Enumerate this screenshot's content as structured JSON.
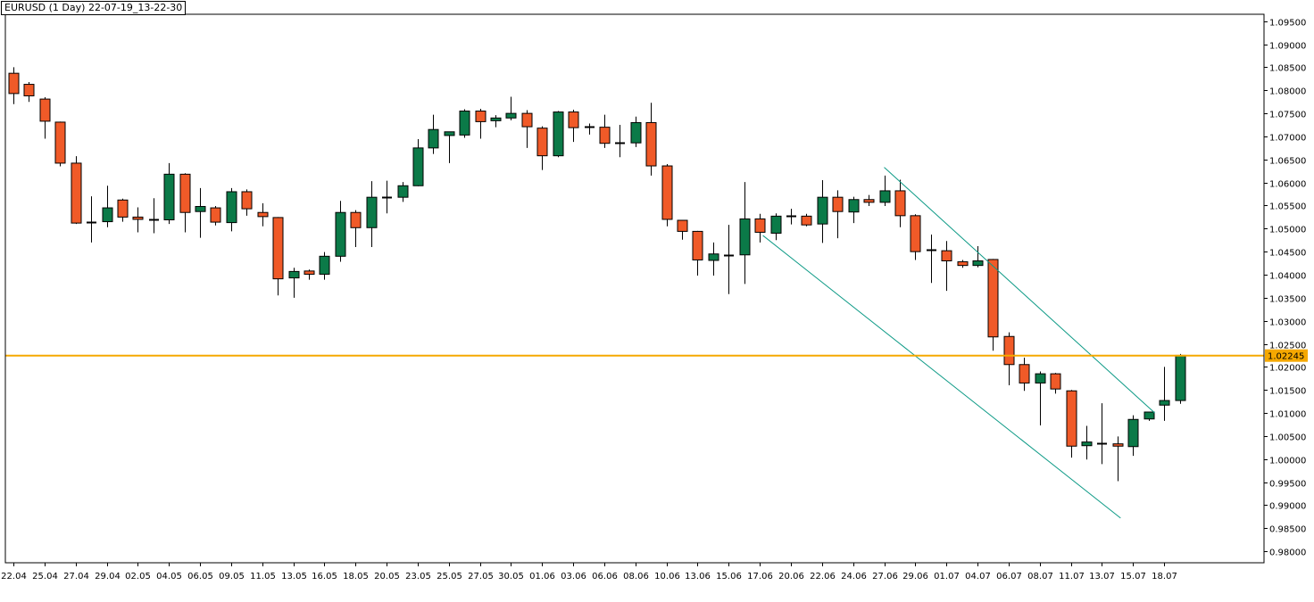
{
  "chart_title": "EURUSD (1 Day) 22-07-19_13-22-30",
  "colors": {
    "bull": "#0b7a48",
    "bear": "#f05a28",
    "wick": "#000000",
    "trendline": "#0d9a86",
    "hline": "#f5a800",
    "price_tag_bg": "#f5a800",
    "grid": "#e8e8e8",
    "axis": "#000000"
  },
  "chart_data": {
    "type": "candlestick",
    "title": "EURUSD (1 Day) 22-07-19_13-22-30",
    "ylim": [
      0.9775,
      1.0965
    ],
    "y_ticks": [
      "1.09500",
      "1.09000",
      "1.08500",
      "1.08000",
      "1.07500",
      "1.07000",
      "1.06500",
      "1.06000",
      "1.05500",
      "1.05000",
      "1.04500",
      "1.04000",
      "1.03500",
      "1.03000",
      "1.02500",
      "1.02000",
      "1.01500",
      "1.01000",
      "1.00500",
      "1.00000",
      "0.99500",
      "0.99000",
      "0.98500",
      "0.98000"
    ],
    "x_ticks": [
      {
        "label": "22.04",
        "index": 0
      },
      {
        "label": "25.04",
        "index": 2
      },
      {
        "label": "27.04",
        "index": 4
      },
      {
        "label": "29.04",
        "index": 6
      },
      {
        "label": "02.05",
        "index": 8
      },
      {
        "label": "04.05",
        "index": 10
      },
      {
        "label": "06.05",
        "index": 12
      },
      {
        "label": "09.05",
        "index": 14
      },
      {
        "label": "11.05",
        "index": 16
      },
      {
        "label": "13.05",
        "index": 18
      },
      {
        "label": "16.05",
        "index": 20
      },
      {
        "label": "18.05",
        "index": 22
      },
      {
        "label": "20.05",
        "index": 24
      },
      {
        "label": "23.05",
        "index": 26
      },
      {
        "label": "25.05",
        "index": 28
      },
      {
        "label": "27.05",
        "index": 30
      },
      {
        "label": "30.05",
        "index": 32
      },
      {
        "label": "01.06",
        "index": 34
      },
      {
        "label": "03.06",
        "index": 36
      },
      {
        "label": "06.06",
        "index": 38
      },
      {
        "label": "08.06",
        "index": 40
      },
      {
        "label": "10.06",
        "index": 42
      },
      {
        "label": "13.06",
        "index": 44
      },
      {
        "label": "15.06",
        "index": 46
      },
      {
        "label": "17.06",
        "index": 48
      },
      {
        "label": "20.06",
        "index": 50
      },
      {
        "label": "22.06",
        "index": 52
      },
      {
        "label": "24.06",
        "index": 54
      },
      {
        "label": "27.06",
        "index": 56
      },
      {
        "label": "29.06",
        "index": 58
      },
      {
        "label": "01.07",
        "index": 60
      },
      {
        "label": "04.07",
        "index": 62
      },
      {
        "label": "06.07",
        "index": 64
      },
      {
        "label": "08.07",
        "index": 66
      },
      {
        "label": "11.07",
        "index": 68
      },
      {
        "label": "13.07",
        "index": 70
      },
      {
        "label": "15.07",
        "index": 72
      },
      {
        "label": "18.07",
        "index": 74
      }
    ],
    "candles": [
      {
        "o": 1.0837,
        "h": 1.085,
        "l": 1.077,
        "c": 1.0793
      },
      {
        "o": 1.0813,
        "h": 1.0818,
        "l": 1.0775,
        "c": 1.0788
      },
      {
        "o": 1.0781,
        "h": 1.0785,
        "l": 1.0695,
        "c": 1.0733
      },
      {
        "o": 1.0731,
        "h": 1.0732,
        "l": 1.0635,
        "c": 1.0642
      },
      {
        "o": 1.0642,
        "h": 1.0657,
        "l": 1.051,
        "c": 1.0512
      },
      {
        "o": 1.0515,
        "h": 1.057,
        "l": 1.047,
        "c": 1.0512
      },
      {
        "o": 1.0515,
        "h": 1.0593,
        "l": 1.0503,
        "c": 1.0545
      },
      {
        "o": 1.0562,
        "h": 1.0565,
        "l": 1.0515,
        "c": 1.0525
      },
      {
        "o": 1.0525,
        "h": 1.0546,
        "l": 1.0492,
        "c": 1.052
      },
      {
        "o": 1.0518,
        "h": 1.0566,
        "l": 1.049,
        "c": 1.052
      },
      {
        "o": 1.0519,
        "h": 1.0642,
        "l": 1.051,
        "c": 1.0618
      },
      {
        "o": 1.0618,
        "h": 1.062,
        "l": 1.0492,
        "c": 1.0535
      },
      {
        "o": 1.0537,
        "h": 1.0588,
        "l": 1.048,
        "c": 1.0548
      },
      {
        "o": 1.0545,
        "h": 1.0549,
        "l": 1.0507,
        "c": 1.0514
      },
      {
        "o": 1.0513,
        "h": 1.0588,
        "l": 1.0494,
        "c": 1.058
      },
      {
        "o": 1.058,
        "h": 1.0585,
        "l": 1.0528,
        "c": 1.0543
      },
      {
        "o": 1.0535,
        "h": 1.0555,
        "l": 1.0505,
        "c": 1.0526
      },
      {
        "o": 1.0524,
        "h": 1.0525,
        "l": 1.0355,
        "c": 1.0391
      },
      {
        "o": 1.0393,
        "h": 1.0415,
        "l": 1.035,
        "c": 1.0407
      },
      {
        "o": 1.0408,
        "h": 1.0411,
        "l": 1.0389,
        "c": 1.0401
      },
      {
        "o": 1.0401,
        "h": 1.0449,
        "l": 1.0389,
        "c": 1.044
      },
      {
        "o": 1.044,
        "h": 1.056,
        "l": 1.0428,
        "c": 1.0535
      },
      {
        "o": 1.0535,
        "h": 1.054,
        "l": 1.046,
        "c": 1.0502
      },
      {
        "o": 1.0502,
        "h": 1.0603,
        "l": 1.046,
        "c": 1.0568
      },
      {
        "o": 1.0568,
        "h": 1.0604,
        "l": 1.0533,
        "c": 1.0568
      },
      {
        "o": 1.0568,
        "h": 1.0601,
        "l": 1.0558,
        "c": 1.0593
      },
      {
        "o": 1.0593,
        "h": 1.0694,
        "l": 1.0592,
        "c": 1.0675
      },
      {
        "o": 1.0675,
        "h": 1.0747,
        "l": 1.0662,
        "c": 1.0715
      },
      {
        "o": 1.0702,
        "h": 1.0709,
        "l": 1.0642,
        "c": 1.071
      },
      {
        "o": 1.0703,
        "h": 1.0759,
        "l": 1.0697,
        "c": 1.0755
      },
      {
        "o": 1.0755,
        "h": 1.076,
        "l": 1.0695,
        "c": 1.0732
      },
      {
        "o": 1.0734,
        "h": 1.0746,
        "l": 1.072,
        "c": 1.074
      },
      {
        "o": 1.074,
        "h": 1.0786,
        "l": 1.0735,
        "c": 1.075
      },
      {
        "o": 1.075,
        "h": 1.0757,
        "l": 1.0675,
        "c": 1.0721
      },
      {
        "o": 1.0718,
        "h": 1.0722,
        "l": 1.0627,
        "c": 1.0658
      },
      {
        "o": 1.0658,
        "h": 1.0755,
        "l": 1.0655,
        "c": 1.0753
      },
      {
        "o": 1.0753,
        "h": 1.0758,
        "l": 1.0688,
        "c": 1.0719
      },
      {
        "o": 1.072,
        "h": 1.0728,
        "l": 1.0704,
        "c": 1.0722
      },
      {
        "o": 1.072,
        "h": 1.0747,
        "l": 1.0675,
        "c": 1.0685
      },
      {
        "o": 1.0686,
        "h": 1.0725,
        "l": 1.0655,
        "c": 1.0686
      },
      {
        "o": 1.0686,
        "h": 1.0743,
        "l": 1.0677,
        "c": 1.073
      },
      {
        "o": 1.073,
        "h": 1.0773,
        "l": 1.0615,
        "c": 1.0636
      },
      {
        "o": 1.0636,
        "h": 1.064,
        "l": 1.0505,
        "c": 1.052
      },
      {
        "o": 1.0518,
        "h": 1.0519,
        "l": 1.0476,
        "c": 1.0494
      },
      {
        "o": 1.0494,
        "h": 1.0495,
        "l": 1.0398,
        "c": 1.0432
      },
      {
        "o": 1.0431,
        "h": 1.047,
        "l": 1.0398,
        "c": 1.0445
      },
      {
        "o": 1.044,
        "h": 1.0508,
        "l": 1.0358,
        "c": 1.0443
      },
      {
        "o": 1.0443,
        "h": 1.0601,
        "l": 1.038,
        "c": 1.0521
      },
      {
        "o": 1.0521,
        "h": 1.0532,
        "l": 1.047,
        "c": 1.0492
      },
      {
        "o": 1.049,
        "h": 1.0533,
        "l": 1.0475,
        "c": 1.0527
      },
      {
        "o": 1.0526,
        "h": 1.0543,
        "l": 1.0509,
        "c": 1.0527
      },
      {
        "o": 1.0527,
        "h": 1.0532,
        "l": 1.0505,
        "c": 1.0508
      },
      {
        "o": 1.051,
        "h": 1.0605,
        "l": 1.0469,
        "c": 1.0568
      },
      {
        "o": 1.0568,
        "h": 1.0583,
        "l": 1.0479,
        "c": 1.0537
      },
      {
        "o": 1.0536,
        "h": 1.0569,
        "l": 1.0512,
        "c": 1.0563
      },
      {
        "o": 1.0563,
        "h": 1.0573,
        "l": 1.0549,
        "c": 1.0557
      },
      {
        "o": 1.0557,
        "h": 1.0615,
        "l": 1.0549,
        "c": 1.0582
      },
      {
        "o": 1.0582,
        "h": 1.0606,
        "l": 1.0503,
        "c": 1.0528
      },
      {
        "o": 1.0528,
        "h": 1.0531,
        "l": 1.0432,
        "c": 1.045
      },
      {
        "o": 1.0452,
        "h": 1.0487,
        "l": 1.0382,
        "c": 1.0455
      },
      {
        "o": 1.0452,
        "h": 1.0473,
        "l": 1.0365,
        "c": 1.043
      },
      {
        "o": 1.0428,
        "h": 1.0432,
        "l": 1.0415,
        "c": 1.042
      },
      {
        "o": 1.042,
        "h": 1.0462,
        "l": 1.0416,
        "c": 1.043
      },
      {
        "o": 1.0433,
        "h": 1.0434,
        "l": 1.0235,
        "c": 1.0265
      },
      {
        "o": 1.0266,
        "h": 1.0275,
        "l": 1.016,
        "c": 1.0205
      },
      {
        "o": 1.0205,
        "h": 1.022,
        "l": 1.0148,
        "c": 1.0165
      },
      {
        "o": 1.0165,
        "h": 1.019,
        "l": 1.0073,
        "c": 1.0185
      },
      {
        "o": 1.0185,
        "h": 1.0187,
        "l": 1.0142,
        "c": 1.0152
      },
      {
        "o": 1.0148,
        "h": 1.015,
        "l": 1.0003,
        "c": 1.0028
      },
      {
        "o": 1.0029,
        "h": 1.0072,
        "l": 0.9999,
        "c": 1.0037
      },
      {
        "o": 1.0035,
        "h": 1.0121,
        "l": 0.9989,
        "c": 1.0035
      },
      {
        "o": 1.0033,
        "h": 1.0049,
        "l": 0.9952,
        "c": 1.0028
      },
      {
        "o": 1.0027,
        "h": 1.0095,
        "l": 1.0007,
        "c": 1.0086
      },
      {
        "o": 1.0087,
        "h": 1.0103,
        "l": 1.0083,
        "c": 1.0102
      },
      {
        "o": 1.0117,
        "h": 1.02,
        "l": 1.0083,
        "c": 1.0127
      },
      {
        "o": 1.0127,
        "h": 1.0228,
        "l": 1.012,
        "c": 1.0225
      }
    ],
    "trendlines": [
      {
        "x1": 56.0,
        "y1": 1.0633,
        "x2": 73.4,
        "y2": 1.01
      },
      {
        "x1": 48.2,
        "y1": 1.0485,
        "x2": 71.2,
        "y2": 0.9872
      }
    ],
    "hline": {
      "value": 1.02245,
      "label": "1.02245"
    }
  }
}
